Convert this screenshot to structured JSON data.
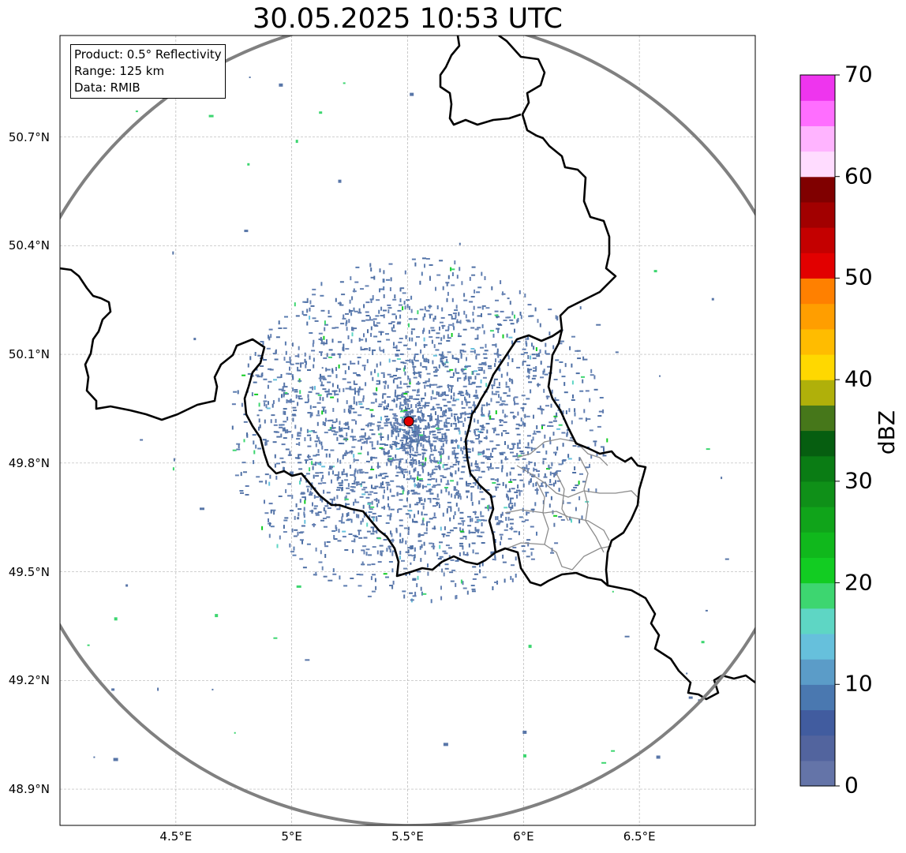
{
  "title": "30.05.2025 10:53 UTC",
  "info_box": {
    "product": "Product: 0.5° Reflectivity",
    "range": "Range: 125 km",
    "data": "Data: RMIB"
  },
  "map": {
    "lon_range": [
      4.0,
      7.0
    ],
    "lat_range": [
      48.8,
      50.98
    ],
    "radar_site": {
      "lon": 5.505,
      "lat": 49.915,
      "marker_color": "#e00000"
    },
    "range_ring_km": 125,
    "range_ring_color": "#808080",
    "gridlines": true,
    "border_color": "#000000",
    "subregion_border_color": "#8c8c8c"
  },
  "axes": {
    "lat_ticks": [
      {
        "value": 50.7,
        "label": "50.7°N"
      },
      {
        "value": 50.4,
        "label": "50.4°N"
      },
      {
        "value": 50.1,
        "label": "50.1°N"
      },
      {
        "value": 49.8,
        "label": "49.8°N"
      },
      {
        "value": 49.5,
        "label": "49.5°N"
      },
      {
        "value": 49.2,
        "label": "49.2°N"
      },
      {
        "value": 48.9,
        "label": "48.9°N"
      }
    ],
    "lon_ticks": [
      {
        "value": 4.5,
        "label": "4.5°E"
      },
      {
        "value": 5.0,
        "label": "5°E"
      },
      {
        "value": 5.5,
        "label": "5.5°E"
      },
      {
        "value": 6.0,
        "label": "6°E"
      },
      {
        "value": 6.5,
        "label": "6.5°E"
      }
    ]
  },
  "colorbar": {
    "label": "dBZ",
    "range": [
      0,
      70
    ],
    "ticks": [
      {
        "value": 0,
        "label": "0"
      },
      {
        "value": 10,
        "label": "10"
      },
      {
        "value": 20,
        "label": "20"
      },
      {
        "value": 30,
        "label": "30"
      },
      {
        "value": 40,
        "label": "40"
      },
      {
        "value": 50,
        "label": "50"
      },
      {
        "value": 60,
        "label": "60"
      },
      {
        "value": 70,
        "label": "70"
      }
    ],
    "colors": [
      "#6474a8",
      "#52649e",
      "#415c9f",
      "#4a78b0",
      "#5b9cc8",
      "#66c0dc",
      "#5ed6c4",
      "#3dd670",
      "#12cc22",
      "#10b81c",
      "#10a41a",
      "#0f9018",
      "#0a7c14",
      "#065e10",
      "#46771a",
      "#b0b00a",
      "#ffd800",
      "#ffbc00",
      "#ff9e00",
      "#ff8000",
      "#e20000",
      "#c40000",
      "#a20000",
      "#800000",
      "#ffdcff",
      "#ffb4ff",
      "#ff6eff",
      "#ee35ee"
    ]
  }
}
